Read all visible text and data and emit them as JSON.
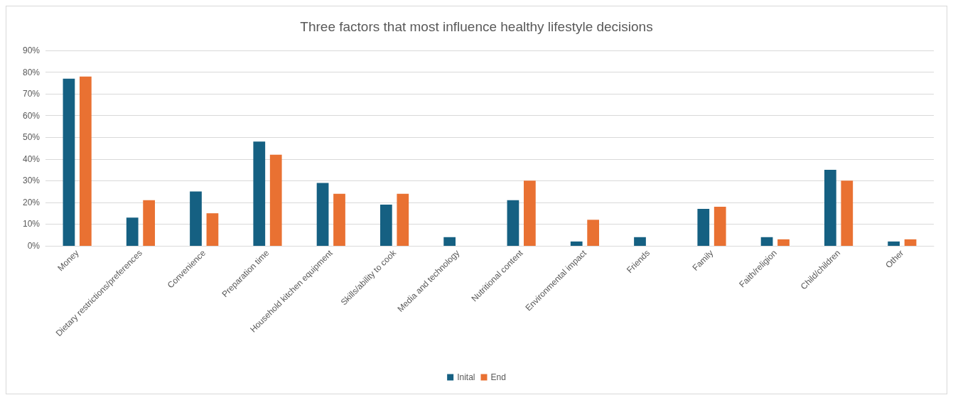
{
  "chart_data": {
    "type": "bar",
    "title": "Three factors that most influence healthy lifestyle decisions",
    "categories": [
      "Money",
      "Dietary restrictions/preferences",
      "Convenience",
      "Preparation time",
      "Household kitchen equipment",
      "Skills/ability to cook",
      "Media and technology",
      "Nutritional content",
      "Environmental impact",
      "Friends",
      "Family",
      "Faith/religion",
      "Child/children",
      "Other"
    ],
    "series": [
      {
        "name": "Inital",
        "color": "#156082",
        "values": [
          77,
          13,
          25,
          48,
          29,
          19,
          4,
          21,
          2,
          4,
          17,
          4,
          35,
          2
        ]
      },
      {
        "name": "End",
        "color": "#e97132",
        "values": [
          78,
          21,
          15,
          42,
          24,
          24,
          0,
          30,
          12,
          0,
          18,
          3,
          30,
          3
        ]
      }
    ],
    "ylim": [
      0,
      90
    ],
    "yticks": [
      {
        "value": 0,
        "label": "0%"
      },
      {
        "value": 10,
        "label": "10%"
      },
      {
        "value": 20,
        "label": "20%"
      },
      {
        "value": 30,
        "label": "30%"
      },
      {
        "value": 40,
        "label": "40%"
      },
      {
        "value": 50,
        "label": "50%"
      },
      {
        "value": 60,
        "label": "60%"
      },
      {
        "value": 70,
        "label": "70%"
      },
      {
        "value": 80,
        "label": "80%"
      },
      {
        "value": 90,
        "label": "90%"
      }
    ],
    "grid": "y",
    "legend": "bottom"
  }
}
